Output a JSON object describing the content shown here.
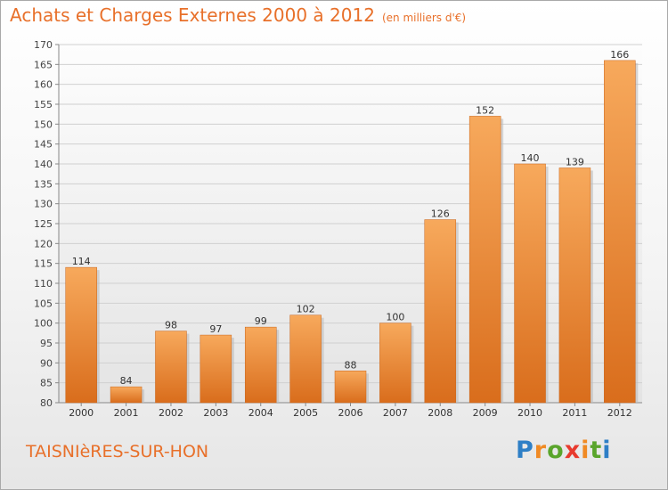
{
  "header": {
    "title": "Achats et Charges Externes 2000 à 2012",
    "unit": "(en milliers d'€)"
  },
  "footer": {
    "commune": "TAISNIèRES-SUR-HON",
    "logo": {
      "letters": [
        "P",
        "r",
        "o",
        "x",
        "i",
        "t",
        "i"
      ],
      "colors": [
        "#2e7fc6",
        "#f08a24",
        "#5aa52c",
        "#e83a2e",
        "#f08a24",
        "#5aa52c",
        "#2e7fc6"
      ]
    }
  },
  "chart_data": {
    "type": "bar",
    "categories": [
      "2000",
      "2001",
      "2002",
      "2003",
      "2004",
      "2005",
      "2006",
      "2007",
      "2008",
      "2009",
      "2010",
      "2011",
      "2012"
    ],
    "values": [
      114,
      84,
      98,
      97,
      99,
      102,
      88,
      100,
      126,
      152,
      140,
      139,
      166
    ],
    "ylim": [
      80,
      170
    ],
    "yticks": [
      80,
      85,
      90,
      95,
      100,
      105,
      110,
      115,
      120,
      125,
      130,
      135,
      140,
      145,
      150,
      155,
      160,
      165,
      170
    ],
    "grid": true,
    "bar_color": "#e8802b"
  }
}
